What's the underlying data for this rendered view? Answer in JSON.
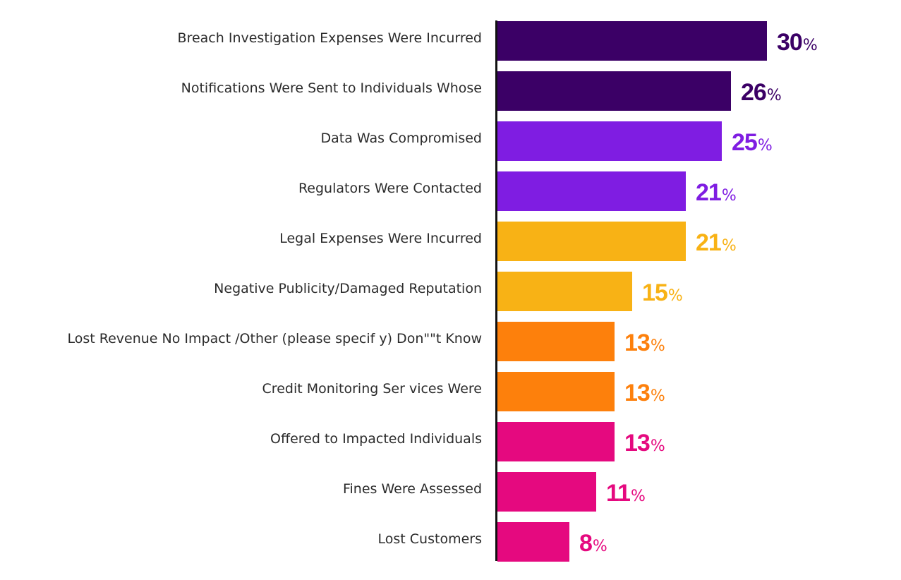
{
  "chart_data": {
    "type": "bar",
    "orientation": "horizontal",
    "categories": [
      "Breach Investigation Expenses Were Incurred",
      "Notifications Were Sent to Individuals Whose",
      "Data Was Compromised",
      "Regulators Were Contacted",
      "Legal Expenses Were Incurred",
      "Negative Publicity/Damaged Reputation",
      "Lost Revenue No Impact /Other (please specif y) Don\"\"t Know",
      "Credit Monitoring Ser vices Were",
      "Offered to Impacted Individuals",
      "Fines Were Assessed",
      "Lost Customers"
    ],
    "values": [
      30,
      26,
      25,
      21,
      21,
      15,
      13,
      13,
      13,
      11,
      8
    ],
    "value_labels": [
      "30",
      "26",
      "25",
      "21",
      "21",
      "15",
      "13",
      "13",
      "13",
      "11",
      "8"
    ],
    "value_suffix": "%",
    "colors": [
      "#3b0066",
      "#3b0066",
      "#7f1de2",
      "#7f1de2",
      "#f8b215",
      "#f8b215",
      "#fd800c",
      "#fd800c",
      "#e5097f",
      "#e5097f",
      "#e5097f"
    ],
    "xlim": [
      0,
      30
    ],
    "title": "",
    "xlabel": "",
    "ylabel": "",
    "grid": false,
    "legend": "none"
  }
}
